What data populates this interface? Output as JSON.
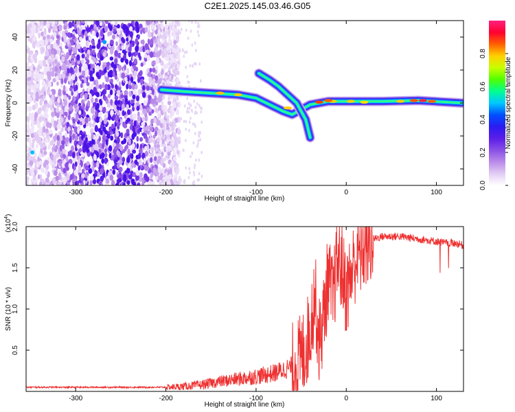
{
  "figure_title": "C2E1.2025.145.03.46.G05",
  "chart_data": [
    {
      "type": "heatmap",
      "panel": "spectrogram",
      "xlabel": "Height of straight line (km)",
      "ylabel": "Frequency (Hz)",
      "xlim": [
        -355,
        130
      ],
      "ylim": [
        -50,
        50
      ],
      "xticks": [
        -300,
        -200,
        -100,
        0,
        100
      ],
      "yticks": [
        -40,
        -20,
        0,
        20,
        40
      ],
      "colorbar": {
        "label": "Normalized spectral amplitude",
        "range": [
          0,
          1
        ],
        "ticks": [
          "0.0",
          "0.2",
          "0.4",
          "0.6",
          "0.8"
        ],
        "colors": [
          "#ffffff",
          "#e2ccf4",
          "#b98be8",
          "#8a4fe6",
          "#5a1ee8",
          "#2a1cf2",
          "#0050ff",
          "#00c8ff",
          "#00ff90",
          "#50ff00",
          "#c8ff00",
          "#ffd000",
          "#ff6000",
          "#ff0030",
          "#ff2080"
        ]
      },
      "noise_region": {
        "x_from": -355,
        "x_to": -205,
        "description": "broadband"
      },
      "ridges": [
        {
          "name": "main",
          "points": [
            [
              -205,
              8
            ],
            [
              -180,
              7
            ],
            [
              -150,
              6
            ],
            [
              -120,
              5
            ],
            [
              -100,
              3
            ],
            [
              -85,
              -1
            ],
            [
              -70,
              -5
            ],
            [
              -60,
              -7
            ],
            [
              -50,
              -4
            ],
            [
              -40,
              -1
            ],
            [
              -20,
              1
            ],
            [
              0,
              1
            ],
            [
              40,
              1
            ],
            [
              80,
              1.5
            ],
            [
              128,
              0
            ]
          ]
        },
        {
          "name": "branch",
          "points": [
            [
              -97,
              18
            ],
            [
              -85,
              14
            ],
            [
              -75,
              10
            ],
            [
              -65,
              5
            ],
            [
              -55,
              0
            ],
            [
              -45,
              -10
            ],
            [
              -40,
              -21
            ]
          ]
        }
      ]
    },
    {
      "type": "line",
      "panel": "snr",
      "xlabel": "Height of straight line (km)",
      "ylabel": "SNR (10 * v/v)",
      "yscale_label": "(x10",
      "yscale_exp": "4",
      "yscale_close": ")",
      "xlim": [
        -355,
        130
      ],
      "ylim": [
        0,
        2.0
      ],
      "xticks": [
        -300,
        -200,
        -100,
        0,
        100
      ],
      "yticks": [
        "0.5",
        "1.0",
        "1.5",
        "2.0"
      ],
      "ytick_values": [
        0.5,
        1.0,
        1.5,
        2.0
      ],
      "color": "#ee3030",
      "series": [
        {
          "x": [
            -355,
            -300,
            -250,
            -200,
            -180,
            -160,
            -140,
            -120,
            -100,
            -80,
            -60,
            -50,
            -45,
            -40,
            -35,
            -30,
            -25,
            -20,
            -15,
            -10,
            -5,
            0,
            10,
            20,
            30,
            40,
            60,
            80,
            100,
            110,
            120,
            130
          ],
          "y": [
            0.05,
            0.05,
            0.05,
            0.05,
            0.06,
            0.08,
            0.12,
            0.15,
            0.18,
            0.22,
            0.3,
            0.4,
            0.55,
            0.75,
            1.2,
            0.6,
            0.9,
            1.4,
            1.1,
            1.6,
            1.5,
            1.2,
            1.6,
            1.75,
            1.85,
            1.88,
            1.88,
            1.85,
            1.82,
            1.8,
            1.8,
            1.77
          ]
        }
      ]
    }
  ]
}
